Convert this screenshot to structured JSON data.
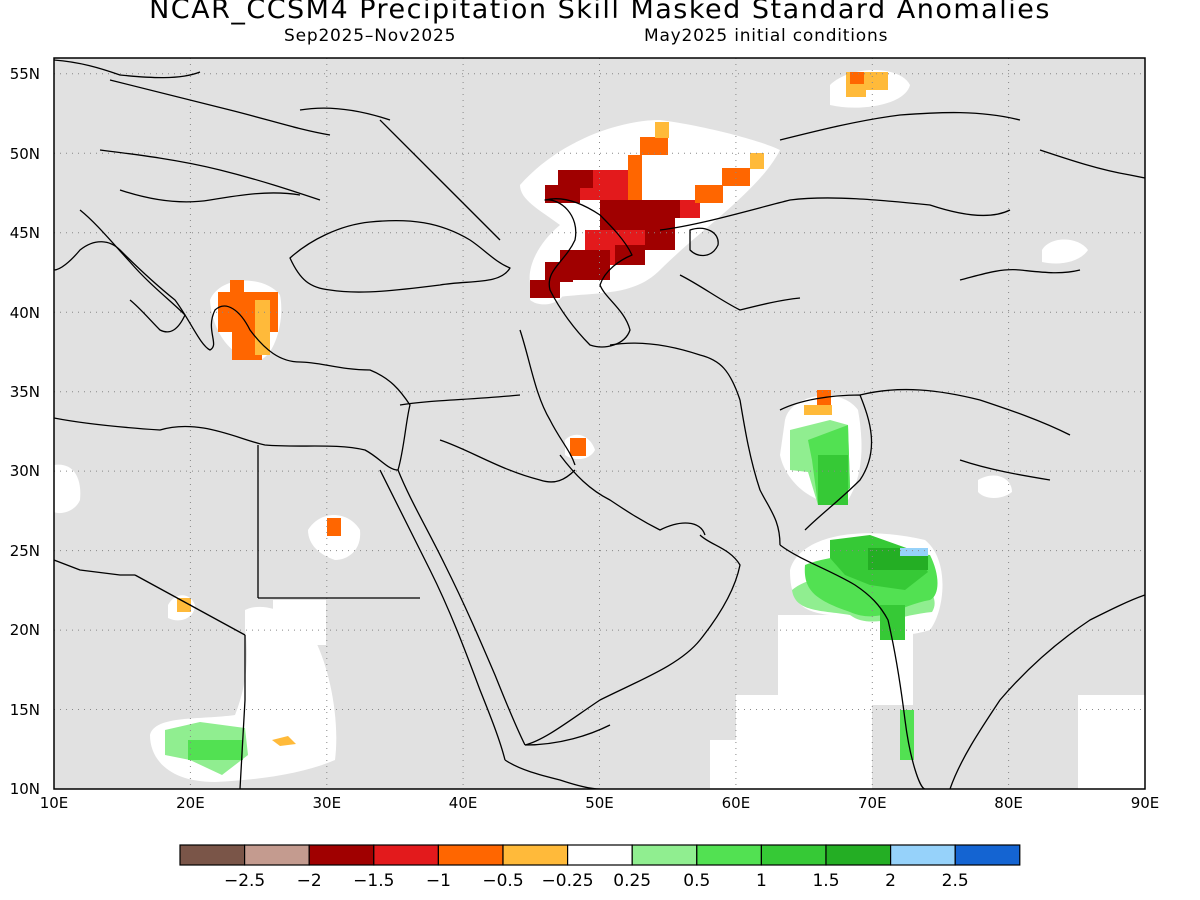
{
  "title": "NCAR_CCSM4 Precipitation Skill Masked Standard Anomalies",
  "subtitle_left": "Sep2025–Nov2025",
  "subtitle_right": "May2025 initial conditions",
  "map": {
    "lon_range": [
      10,
      90
    ],
    "lat_range": [
      10,
      56
    ],
    "lon_ticks": [
      "10E",
      "20E",
      "30E",
      "40E",
      "50E",
      "60E",
      "70E",
      "80E",
      "90E"
    ],
    "lat_ticks": [
      "10N",
      "15N",
      "20N",
      "25N",
      "30N",
      "35N",
      "40N",
      "45N",
      "50N",
      "55N"
    ],
    "masked_color": "#e1e1e1",
    "grid": "dotted"
  },
  "colorbar": {
    "colors": [
      "#7a5548",
      "#c49b8f",
      "#a00000",
      "#e31a1c",
      "#ff6600",
      "#ffba3a",
      "#ffffff",
      "#90ee90",
      "#52e152",
      "#36c936",
      "#24ae24",
      "#96d2fa",
      "#1464d2"
    ],
    "labels": [
      "-2.5",
      "-2",
      "-1.5",
      "-1",
      "-0.5",
      "-0.25",
      "0.25",
      "0.5",
      "1",
      "1.5",
      "2",
      "2.5"
    ]
  }
}
